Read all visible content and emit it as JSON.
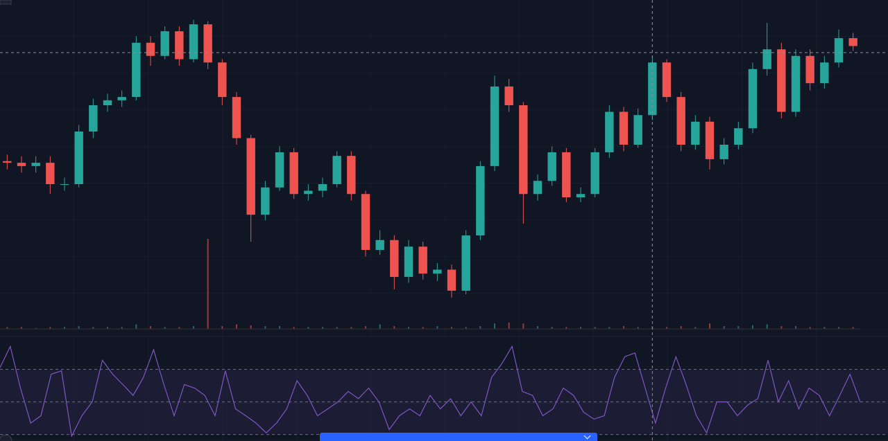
{
  "chart_data": {
    "type": "candlestick",
    "up_color": "#26a69a",
    "down_color": "#ef5350",
    "ylim": [
      0,
      100
    ],
    "open": [
      51,
      50.5,
      49.5,
      50.5,
      44,
      44,
      60,
      68,
      69.5,
      70.5,
      87,
      83,
      90.5,
      82,
      92.6,
      81,
      70.5,
      58,
      34.7,
      43,
      53.7,
      41,
      42,
      44,
      52.6,
      41,
      24,
      27,
      15.8,
      25,
      16.8,
      18,
      11.6,
      28.4,
      49.5,
      73.7,
      68,
      41,
      45,
      53.7,
      40,
      41,
      53.7,
      66,
      56,
      65,
      81,
      70.5,
      56,
      63,
      51.6,
      56,
      61,
      79,
      85,
      66,
      83,
      74.7,
      81,
      88.4
    ],
    "high": [
      53,
      52.5,
      52.5,
      52.5,
      46,
      62,
      70,
      71.5,
      72.5,
      89,
      89,
      92,
      92,
      94,
      93.5,
      82,
      72,
      59,
      45,
      55.5,
      55,
      44,
      46,
      54,
      54,
      42,
      30,
      28.5,
      27,
      26.5,
      20,
      19.5,
      30,
      51,
      77,
      76,
      69,
      47,
      55.5,
      55,
      43,
      55,
      68,
      67.5,
      67,
      83,
      82,
      72,
      65,
      64.5,
      58,
      63,
      81,
      93,
      87,
      85,
      85,
      83,
      91,
      90
    ],
    "low": [
      48.5,
      47.5,
      47.5,
      41,
      42,
      43,
      58,
      66,
      67.5,
      69.5,
      80,
      82,
      80,
      81,
      79,
      68,
      56,
      26.5,
      33,
      42,
      39.5,
      39,
      40,
      43,
      39,
      22,
      22.5,
      12,
      14,
      15,
      14.5,
      9.5,
      10.5,
      27,
      48,
      66,
      32,
      39,
      43.5,
      38.5,
      38.5,
      40,
      52,
      54,
      55,
      63.5,
      69,
      54,
      54.5,
      48.5,
      50,
      54.5,
      59.5,
      77,
      64,
      64.5,
      72.5,
      73,
      79.5,
      84.5
    ],
    "close": [
      50.5,
      49.5,
      50.5,
      44,
      44,
      60,
      68,
      69.5,
      70.5,
      87,
      83,
      90.5,
      82,
      92.6,
      81,
      70.5,
      58,
      34.7,
      43,
      53.7,
      41,
      42,
      44,
      52.6,
      41,
      24,
      27,
      15.8,
      25,
      16.8,
      18,
      11.6,
      28.4,
      49.5,
      73.7,
      68,
      41,
      45,
      53.7,
      40,
      41,
      53.7,
      66,
      56,
      65,
      81,
      70.5,
      56,
      63,
      51.6,
      56,
      61,
      79,
      85,
      66,
      83,
      74.7,
      81,
      88.4,
      86
    ],
    "volume": {
      "ylim": [
        0,
        100
      ],
      "values": [
        2,
        2,
        1,
        2,
        2,
        3,
        2,
        2,
        2,
        5,
        3,
        2,
        2,
        3,
        100,
        3,
        5,
        4,
        3,
        3,
        2,
        2,
        2,
        2,
        2,
        3,
        5,
        3,
        2,
        2,
        3,
        2,
        2,
        3,
        6,
        7,
        6,
        3,
        2,
        2,
        2,
        2,
        2,
        3,
        2,
        3,
        2,
        3,
        2,
        6,
        3,
        3,
        4,
        5,
        3,
        3,
        2,
        2,
        2,
        2
      ]
    },
    "rsi": {
      "color": "#7e57c2",
      "ylim": [
        26,
        88
      ],
      "levels": [
        30,
        50,
        70
      ],
      "values": [
        71,
        84,
        58.5,
        37,
        41.5,
        67,
        69,
        29,
        41.5,
        50,
        75.5,
        67,
        60.6,
        54,
        65,
        82,
        60.6,
        41.5,
        60.6,
        58.5,
        54,
        41.5,
        69,
        45.7,
        41.5,
        37,
        31,
        37,
        45.7,
        63,
        54,
        41.5,
        45.7,
        50,
        56.4,
        52,
        58.5,
        50,
        33,
        41.5,
        45.7,
        41.5,
        54,
        45.7,
        52,
        41.5,
        50,
        41.5,
        65,
        73.4,
        84,
        56.4,
        54,
        41.5,
        45.7,
        58.5,
        54,
        43.6,
        39.4,
        41.5,
        65,
        77.7,
        80,
        58.5,
        37,
        58.5,
        77.7,
        60.6,
        41.5,
        31,
        50,
        50,
        41.5,
        48,
        52,
        75.5,
        50,
        63,
        45.7,
        58.5,
        54,
        41.5,
        54,
        67,
        50
      ]
    },
    "crosshair_index": 45,
    "crosshair_price": 84
  }
}
